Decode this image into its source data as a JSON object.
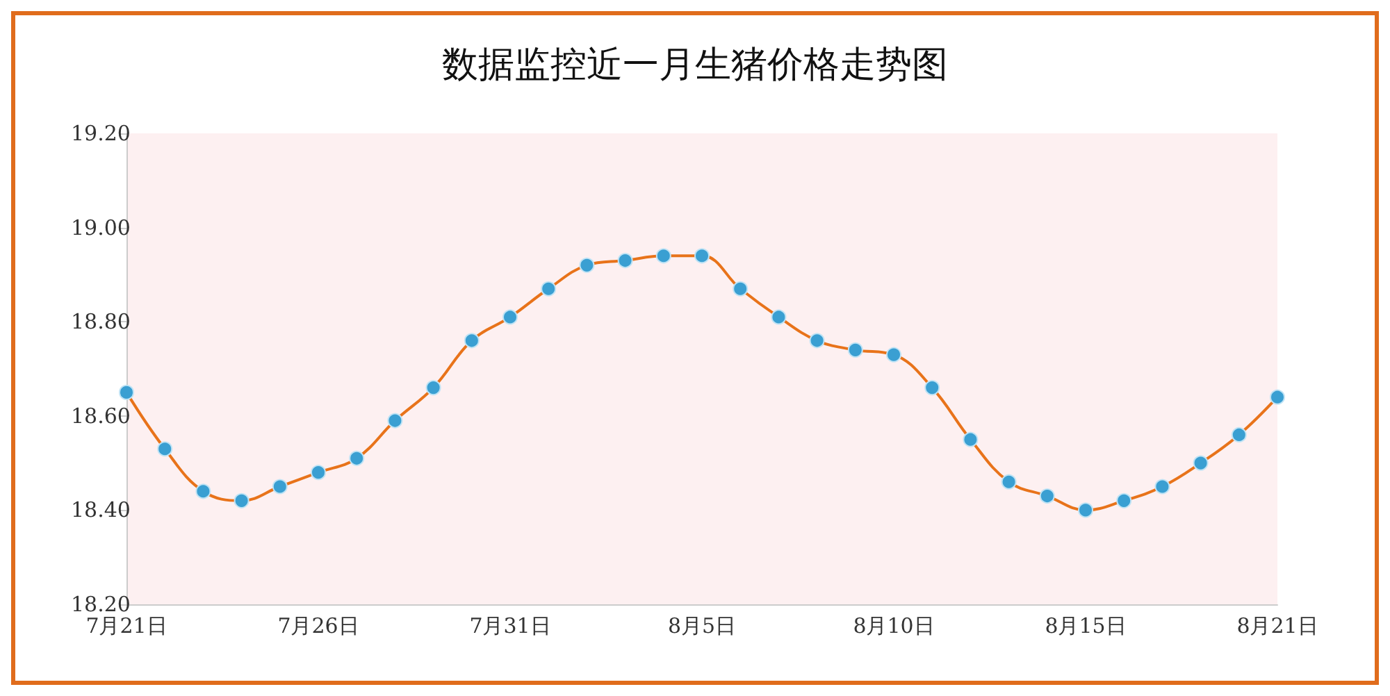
{
  "chart_data": {
    "type": "line",
    "title": "数据监控近一月生猪价格走势图",
    "categories": [
      "7月21日",
      null,
      null,
      null,
      null,
      "7月26日",
      null,
      null,
      null,
      null,
      "7月31日",
      null,
      null,
      null,
      null,
      "8月5日",
      null,
      null,
      null,
      null,
      "8月10日",
      null,
      null,
      null,
      null,
      "8月15日",
      null,
      null,
      null,
      null,
      "8月21日"
    ],
    "series": [
      {
        "color": "#e8731a",
        "values": [
          18.65,
          18.53,
          18.44,
          18.42,
          18.45,
          18.48,
          18.51,
          18.59,
          18.66,
          18.76,
          18.81,
          18.87,
          18.92,
          18.93,
          18.94,
          18.94,
          18.87,
          18.81,
          18.76,
          18.74,
          18.73,
          18.66,
          18.55,
          18.46,
          18.43,
          18.4,
          18.42,
          18.45,
          18.5,
          18.56,
          18.64
        ]
      }
    ],
    "ylim": [
      18.2,
      19.2
    ],
    "yticks": [
      {
        "value": 18.2,
        "label": "18.20"
      },
      {
        "value": 18.4,
        "label": "18.40"
      },
      {
        "value": 18.6,
        "label": "18.60"
      },
      {
        "value": 18.8,
        "label": "18.80"
      },
      {
        "value": 19.0,
        "label": "19.00"
      },
      {
        "value": 19.2,
        "label": "19.20"
      }
    ],
    "grid": false,
    "marker": "circle",
    "line_style": "solid"
  }
}
